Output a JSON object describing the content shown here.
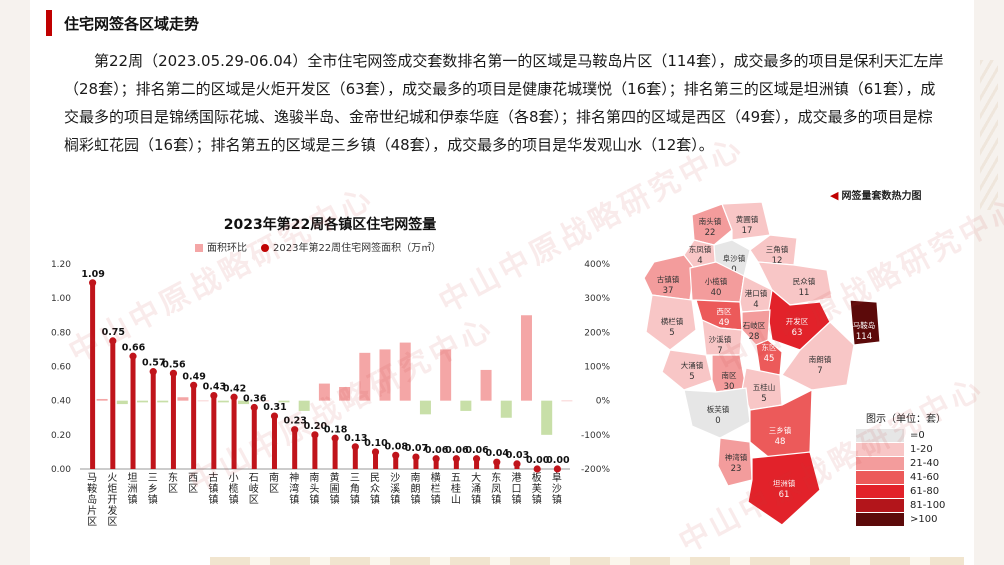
{
  "header": {
    "section_title": "住宅网签各区域走势",
    "paragraph": "第22周（2023.05.29-06.04）全市住宅网签成交套数排名第一的区域是马鞍岛片区（114套），成交最多的项目是保利天汇左岸（28套）；排名第二的区域是火炬开发区（63套），成交最多的项目是健康花城璞悦（16套）；排名第三的区域是坦洲镇（61套），成交最多的项目是锦绣国际花城、逸骏半岛、金帝世纪城和伊泰华庭（各8套）；排名第四的区域是西区（49套），成交最多的项目是棕榈彩虹花园（16套）；排名第五的区域是三乡镇（48套），成交最多的项目是华发观山水（12套）。"
  },
  "watermark": "中山中原战略研究中心",
  "chart_data": {
    "type": "bar",
    "title": "2023年第22周各镇区住宅网签量",
    "legend": [
      "面积环比",
      "2023年第22周住宅网签面积（万㎡）"
    ],
    "categories": [
      "马鞍岛片区",
      "火炬开发区",
      "坦洲镇",
      "三乡镇",
      "东区",
      "西区",
      "古镇镇",
      "小榄镇",
      "石岐区",
      "南区",
      "神湾镇",
      "南头镇",
      "黄圃镇",
      "三角镇",
      "民众镇",
      "沙溪镇",
      "南朗镇",
      "横栏镇",
      "五桂山",
      "大涌镇",
      "东凤镇",
      "港口镇",
      "板芙镇",
      "阜沙镇"
    ],
    "series": [
      {
        "name": "2023年第22周住宅网签面积（万㎡）",
        "axis": "left",
        "values": [
          1.09,
          0.75,
          0.66,
          0.57,
          0.56,
          0.49,
          0.43,
          0.42,
          0.36,
          0.31,
          0.23,
          0.2,
          0.18,
          0.13,
          0.1,
          0.08,
          0.07,
          0.06,
          0.06,
          0.06,
          0.04,
          0.03,
          0.0,
          0.0
        ]
      },
      {
        "name": "面积环比",
        "axis": "right",
        "values": [
          5,
          -10,
          -5,
          -5,
          10,
          0,
          -5,
          -10,
          0,
          -5,
          -30,
          50,
          40,
          140,
          150,
          170,
          -40,
          150,
          -30,
          90,
          -50,
          250,
          -100,
          0
        ]
      }
    ],
    "ylim_left": [
      0,
      1.2
    ],
    "yticks_left": [
      "0.00",
      "0.20",
      "0.40",
      "0.60",
      "0.80",
      "1.00",
      "1.20"
    ],
    "ylim_right": [
      -200,
      400
    ],
    "yticks_right": [
      "-200%",
      "-100%",
      "0%",
      "100%",
      "200%",
      "300%",
      "400%"
    ],
    "colors": {
      "bar": "#c0141b",
      "pos": "#f4a6a6",
      "neg": "#c8dfa8"
    }
  },
  "map": {
    "title": "网签量套数热力图",
    "legend_title": "图示（单位：套）",
    "legend": [
      {
        "label": "=0",
        "color": "#e6e6e6"
      },
      {
        "label": "1-20",
        "color": "#f8c6c6"
      },
      {
        "label": "21-40",
        "color": "#f39c9c"
      },
      {
        "label": "41-60",
        "color": "#ec5a5a"
      },
      {
        "label": "61-80",
        "color": "#e2222a"
      },
      {
        "label": "81-100",
        "color": "#b3151b"
      },
      {
        "label": ">100",
        "color": "#5c0a0a"
      }
    ],
    "regions": [
      {
        "name": "南头镇",
        "value": "22"
      },
      {
        "name": "黄圃镇",
        "value": "17"
      },
      {
        "name": "东凤镇",
        "value": "4"
      },
      {
        "name": "阜沙镇",
        "value": "0"
      },
      {
        "name": "三角镇",
        "value": "12"
      },
      {
        "name": "古镇镇",
        "value": "37"
      },
      {
        "name": "小榄镇",
        "value": "40"
      },
      {
        "name": "民众镇",
        "value": "11"
      },
      {
        "name": "港口镇",
        "value": "4"
      },
      {
        "name": "横栏镇",
        "value": "5"
      },
      {
        "name": "西区",
        "value": "49"
      },
      {
        "name": "开发区",
        "value": "63"
      },
      {
        "name": "石岐区",
        "value": "28"
      },
      {
        "name": "沙溪镇",
        "value": "7"
      },
      {
        "name": "东区",
        "value": "45"
      },
      {
        "name": "马鞍岛",
        "value": "114"
      },
      {
        "name": "大涌镇",
        "value": "5"
      },
      {
        "name": "南区",
        "value": "30"
      },
      {
        "name": "南朗镇",
        "value": "7"
      },
      {
        "name": "五桂山",
        "value": "5"
      },
      {
        "name": "板芙镇",
        "value": "0"
      },
      {
        "name": "三乡镇",
        "value": "48"
      },
      {
        "name": "神湾镇",
        "value": "23"
      },
      {
        "name": "坦洲镇",
        "value": "61"
      }
    ]
  }
}
